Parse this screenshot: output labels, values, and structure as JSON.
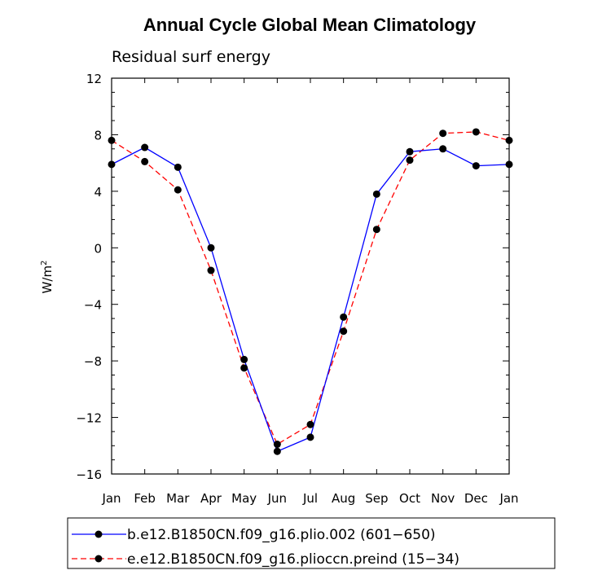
{
  "chart_data": {
    "type": "line",
    "title": "Annual Cycle Global Mean Climatology",
    "subtitle": "Residual surf energy",
    "xlabel": "",
    "ylabel": "W/m",
    "ylabel_superscript": "2",
    "categories": [
      "Jan",
      "Feb",
      "Mar",
      "Apr",
      "May",
      "Jun",
      "Jul",
      "Aug",
      "Sep",
      "Oct",
      "Nov",
      "Dec",
      "Jan"
    ],
    "ylim": [
      -16,
      12
    ],
    "yticks": [
      "12",
      "8",
      "4",
      "0",
      "−4",
      "−8",
      "−12",
      "−16"
    ],
    "ytick_values": [
      12,
      8,
      4,
      0,
      -4,
      -8,
      -12,
      -16
    ],
    "grid": false,
    "legend_position": "bottom",
    "series": [
      {
        "name": "b.e12.B1850CN.f09_g16.plio.002 (601−650)",
        "color": "#0000ff",
        "style": "solid",
        "values": [
          5.9,
          7.1,
          5.7,
          0.0,
          -7.9,
          -14.4,
          -13.4,
          -4.9,
          3.8,
          6.8,
          7.0,
          5.8,
          5.9
        ]
      },
      {
        "name": "e.e12.B1850CN.f09_g16.plioccn.preind (15−34)",
        "color": "#ff0000",
        "style": "dashed",
        "values": [
          7.6,
          6.1,
          4.1,
          -1.6,
          -8.5,
          -13.9,
          -12.5,
          -5.9,
          1.3,
          6.2,
          8.1,
          8.2,
          7.6
        ]
      }
    ]
  }
}
